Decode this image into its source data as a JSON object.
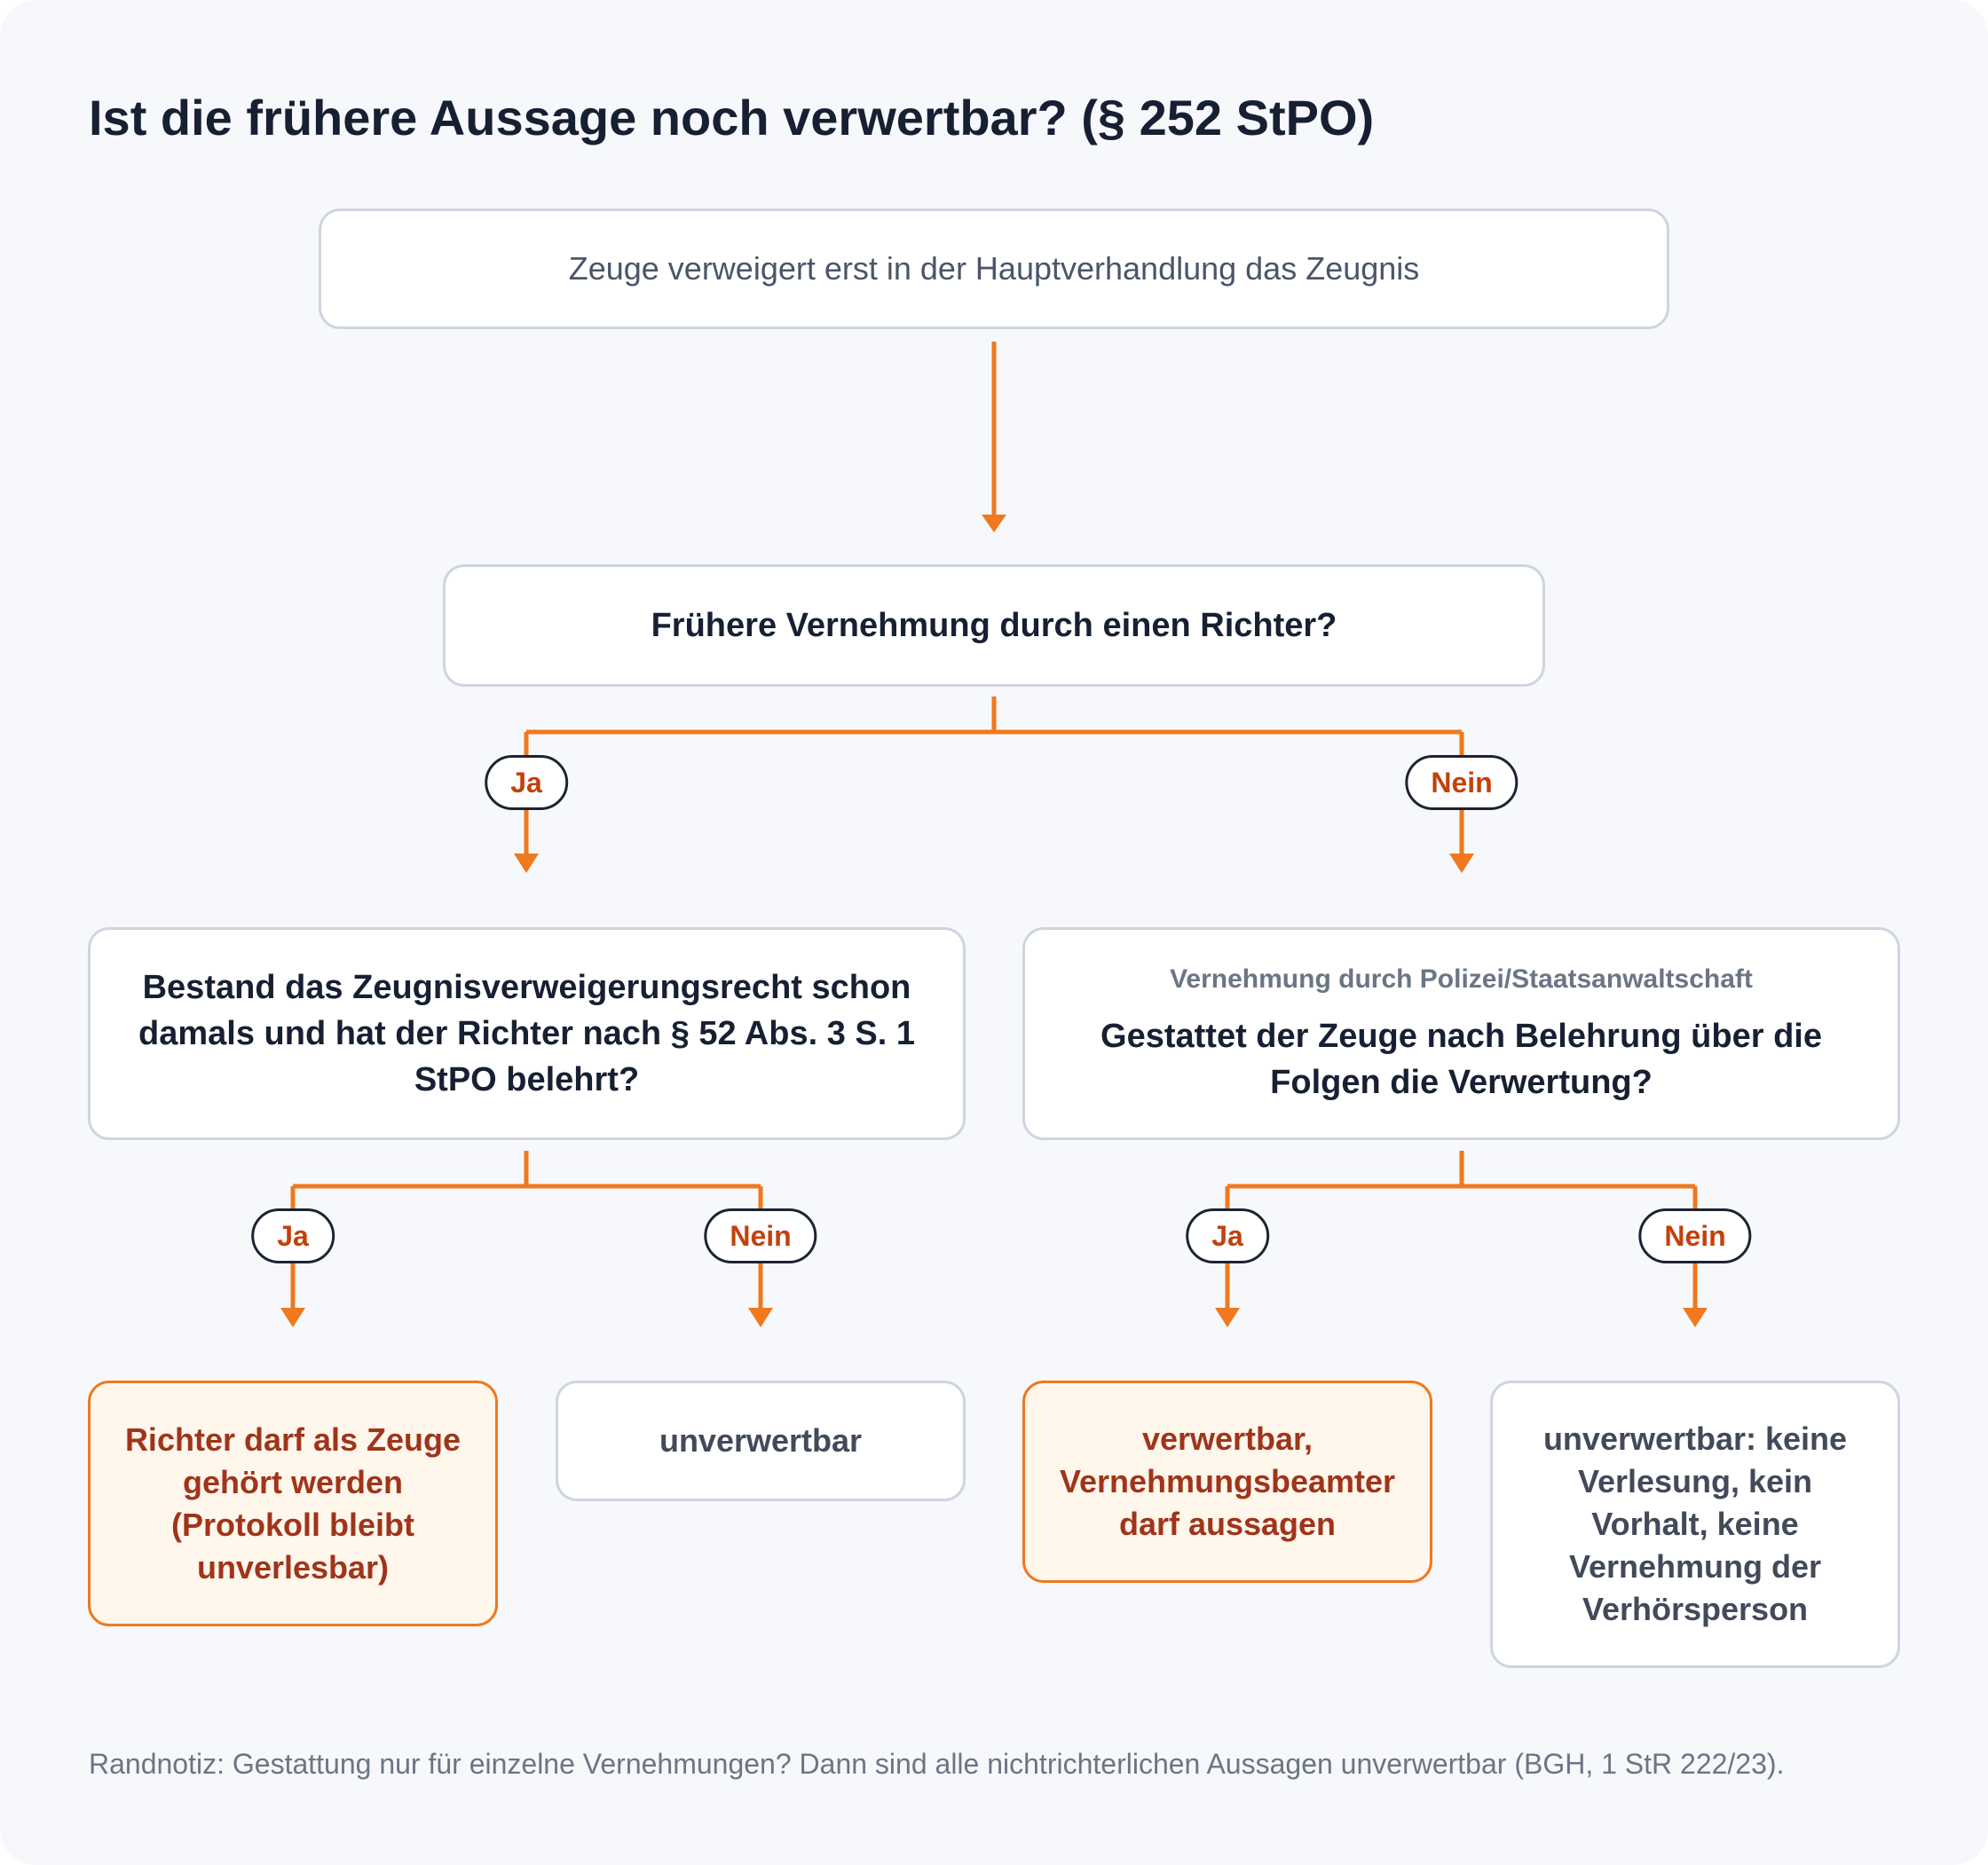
{
  "title": "Ist die frühere Aussage noch verwertbar? (§ 252 StPO)",
  "nodes": {
    "start": "Zeuge verweigert erst in der Hauptverhandlung das Zeugnis",
    "q_richter": "Frühere Vernehmung durch einen Richter?",
    "q_belehrt": "Bestand das Zeugnisverweigerungsrecht schon damals und hat der Richter nach § 52 Abs. 3 S. 1 StPO belehrt?",
    "q_gestattet_sub": "Vernehmung durch Polizei/Staatsanwaltschaft",
    "q_gestattet": "Gestattet der Zeuge nach Belehrung über die Folgen die Verwertung?",
    "r1": "Richter darf als Zeuge gehört werden (Protokoll bleibt unverlesbar)",
    "r2": "unverwertbar",
    "r3": "verwertbar, Vernehmungsbeamter darf aussagen",
    "r4": "unverwertbar: keine Verlesung, kein Vorhalt, keine Vernehmung der Verhörsperson"
  },
  "labels": {
    "yes": "Ja",
    "no": "Nein"
  },
  "note": "Randnotiz: Gestattung nur für einzelne Vernehmungen? Dann sind alle nichtrichterlichen Aussagen unverwertbar (BGH, 1 StR 222/23).",
  "colors": {
    "accent": "#f0781e",
    "border": "#cfd5df",
    "text": "#172033"
  }
}
